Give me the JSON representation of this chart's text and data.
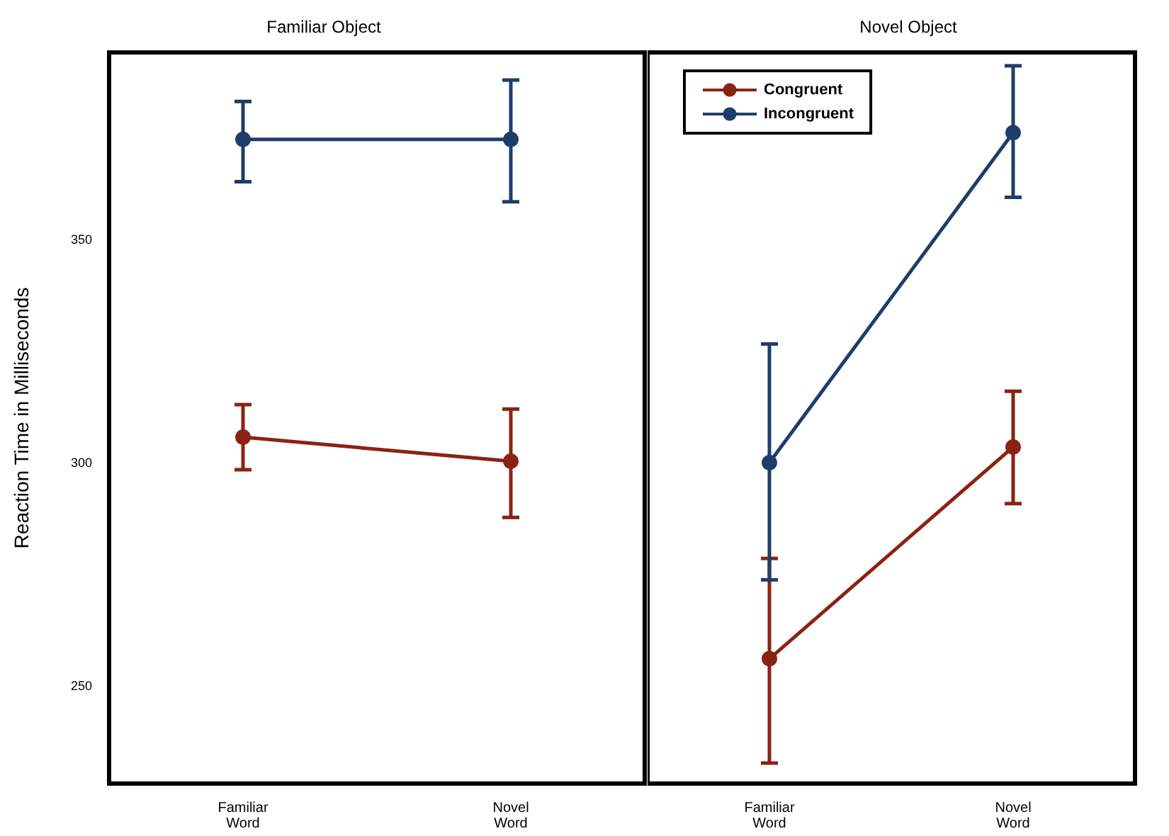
{
  "chart_data": [
    {
      "type": "line",
      "title": "Familiar Object",
      "ylabel": "Reaction Time in Milliseconds",
      "categories": [
        "Familiar Word",
        "Novel Word"
      ],
      "ylim": [
        228,
        392
      ],
      "yticks": [
        250,
        300,
        350
      ],
      "grid": false,
      "legend": false,
      "marker": "circle",
      "line_style": "solid",
      "series": [
        {
          "color": "#8b2313",
          "values": [
            305.7,
            300.3
          ],
          "errors": [
            [
              298.4,
              313
            ],
            [
              287.7,
              312
            ]
          ]
        },
        {
          "color": "#1f3d6b",
          "values": [
            372.5,
            372.5
          ],
          "errors": [
            [
              363,
              381
            ],
            [
              358.5,
              385.8
            ]
          ]
        }
      ]
    },
    {
      "type": "line",
      "title": "Novel Object",
      "categories": [
        "Familiar Word",
        "Novel Word"
      ],
      "ylim": [
        228,
        392
      ],
      "yticks": [
        250,
        300,
        350
      ],
      "tick_labels": "x",
      "grid": false,
      "legend": "top left",
      "marker": "circle",
      "line_style": "solid",
      "series": [
        {
          "name": "Congruent",
          "color": "#8b2313",
          "values": [
            256,
            303.5
          ],
          "errors": [
            [
              232.6,
              278.5
            ],
            [
              290.8,
              316
            ]
          ]
        },
        {
          "name": "Incongruent",
          "color": "#1f3d6b",
          "values": [
            300,
            374
          ],
          "errors": [
            [
              273.7,
              326.6
            ],
            [
              359.5,
              389
            ]
          ]
        }
      ]
    }
  ]
}
